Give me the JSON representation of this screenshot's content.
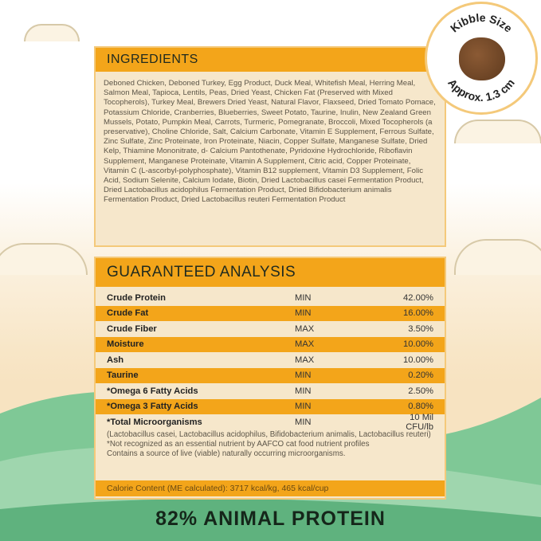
{
  "ingredients": {
    "title": "INGREDIENTS",
    "text": "Deboned Chicken, Deboned Turkey, Egg Product, Duck Meal, Whitefish Meal, Herring Meal, Salmon Meal, Tapioca, Lentils, Peas, Dried Yeast, Chicken Fat (Preserved with Mixed Tocopherols), Turkey Meal, Brewers Dried Yeast, Natural Flavor, Flaxseed, Dried Tomato Pomace, Potassium Chloride, Cranberries, Blueberries, Sweet Potato, Taurine, Inulin, New Zealand Green Mussels, Potato, Pumpkin Meal, Carrots, Turmeric, Pomegranate, Broccoli, Mixed Tocopherols (a preservative), Choline Chloride, Salt, Calcium Carbonate, Vitamin E Supplement, Ferrous Sulfate, Zinc Sulfate, Zinc Proteinate, Iron Proteinate, Niacin, Copper Sulfate, Manganese Sulfate, Dried Kelp, Thiamine Mononitrate, d- Calcium Pantothenate, Pyridoxine Hydrochloride, Riboflavin Supplement, Manganese Proteinate, Vitamin A Supplement, Citric acid, Copper Proteinate, Vitamin C (L-ascorbyl-polyphosphate), Vitamin B12 supplement, Vitamin D3 Supplement, Folic Acid, Sodium Selenite, Calcium Iodate, Biotin, Dried Lactobacillus casei Fermentation Product, Dried Lactobacillus acidophilus Fermentation Product, Dried Bifidobacterium animalis Fermentation Product, Dried Lactobacillus reuteri Fermentation Product"
  },
  "analysis": {
    "title": "GUARANTEED ANALYSIS",
    "rows": [
      {
        "name": "Crude Protein",
        "type": "MIN",
        "value": "42.00%"
      },
      {
        "name": "Crude Fat",
        "type": "MIN",
        "value": "16.00%"
      },
      {
        "name": "Crude Fiber",
        "type": "MAX",
        "value": "3.50%"
      },
      {
        "name": "Moisture",
        "type": "MAX",
        "value": "10.00%"
      },
      {
        "name": "Ash",
        "type": "MAX",
        "value": "10.00%"
      },
      {
        "name": "Taurine",
        "type": "MIN",
        "value": "0.20%"
      },
      {
        "name": "*Omega 6 Fatty Acids",
        "type": "MIN",
        "value": "2.50%"
      },
      {
        "name": "*Omega 3 Fatty Acids",
        "type": "MIN",
        "value": "0.80%"
      },
      {
        "name": "*Total Microorganisms",
        "type": "MIN",
        "value": "10 Mil CFU/lb"
      }
    ],
    "strains": "(Lactobacillus casei, Lactobacillus acidophilus, Bifidobacterium animalis, Lactobacillus reuteri)",
    "note1": "*Not recognized as an essential nutrient by AAFCO cat food nutrient profiles",
    "note2": "Contains a source of live (viable) naturally occurring microorganisms.",
    "calorie": "Calorie Content (ME calculated): 3717 kcal/kg, 465 kcal/cup"
  },
  "badge": {
    "top": "Kibble Size",
    "bottom": "Approx. 1.3 cm"
  },
  "footer": "82% ANIMAL PROTEIN",
  "colors": {
    "accent": "#f3a51a",
    "panel": "#f6e7cb",
    "hills": "#6cbf86"
  }
}
